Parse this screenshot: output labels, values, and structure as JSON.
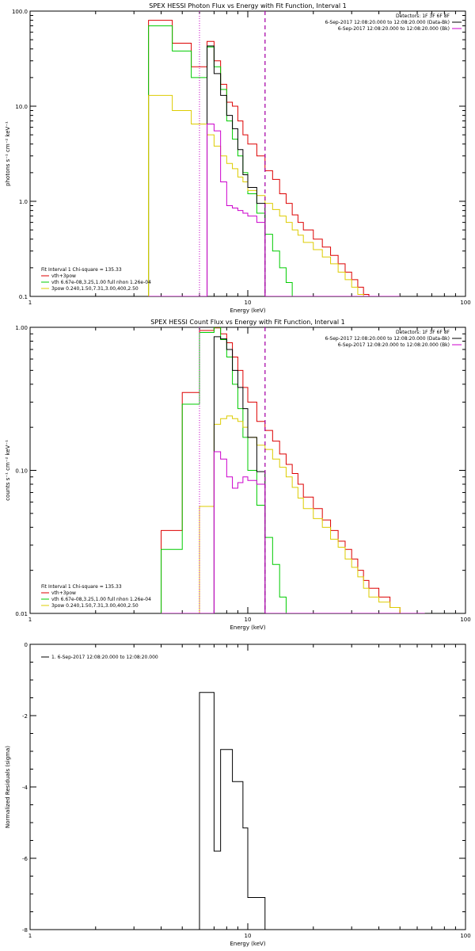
{
  "chart_data": [
    {
      "type": "line",
      "title": "SPEX HESSI Photon Flux vs Energy with Fit Function, Interval 1",
      "xlabel": "Energy (keV)",
      "ylabel": "photons s⁻¹ cm⁻² keV⁻¹",
      "xscale": "log",
      "yscale": "log",
      "xlim": [
        1,
        100
      ],
      "ylim": [
        0.1,
        100
      ],
      "x_ticks": [
        "1",
        "10",
        "100"
      ],
      "y_ticks": [
        "0.1",
        "1.0",
        "10.0",
        "100.0"
      ],
      "vlines": [
        {
          "x": 6.0,
          "style": "dotted",
          "color": "#000000"
        },
        {
          "x": 6.0,
          "style": "dotted",
          "color": "#cc00cc"
        },
        {
          "x": 12.0,
          "style": "dashed",
          "color": "#000000"
        },
        {
          "x": 12.0,
          "style": "dashed",
          "color": "#cc00cc"
        }
      ],
      "edges": [
        3.5,
        4.0,
        4.5,
        5.0,
        5.5,
        6.0,
        6.5,
        7.0,
        7.5,
        8.0,
        8.5,
        9.0,
        9.5,
        10.0,
        11.0,
        12.0,
        13.0,
        14.0,
        15.0,
        16.0,
        17.0,
        18.0,
        20.0,
        22.0,
        24.0,
        26.0,
        28.0,
        30.0,
        32.0,
        34.0,
        36.0,
        40.0,
        45.0,
        50.0
      ],
      "series": [
        {
          "name": "vth+3pow",
          "color": "#dd0000",
          "values": [
            80,
            80,
            46,
            46,
            26,
            26,
            48,
            30,
            17,
            11,
            10,
            7.0,
            5.0,
            4.0,
            3.0,
            2.1,
            1.7,
            1.2,
            0.95,
            0.72,
            0.6,
            0.5,
            0.4,
            0.33,
            0.27,
            0.22,
            0.18,
            0.15,
            0.125,
            0.105,
            0.1,
            0.1,
            0.1
          ]
        },
        {
          "name": "vth 6.67e-08,3.25,1.00 full nhon 1.26e-04",
          "color": "#00cc00",
          "values": [
            70,
            70,
            38,
            38,
            20,
            20,
            42,
            26,
            15,
            7.0,
            4.5,
            3.0,
            2.0,
            1.2,
            0.75,
            0.45,
            0.3,
            0.2,
            0.14,
            0.1,
            0.1,
            0.1,
            0.1,
            0.1,
            0.1,
            0.1,
            0.1,
            0.1,
            0.1,
            0.1,
            0.1,
            0.1,
            0.1
          ]
        },
        {
          "name": "3pow 0.240,1.50,7.31,3.00,400,2.50",
          "color": "#ddcc00",
          "values": [
            13,
            13,
            9.0,
            9.0,
            6.5,
            6.5,
            5.0,
            3.8,
            3.0,
            2.5,
            2.2,
            1.8,
            1.6,
            1.3,
            1.15,
            0.95,
            0.82,
            0.7,
            0.6,
            0.5,
            0.44,
            0.37,
            0.31,
            0.26,
            0.22,
            0.18,
            0.15,
            0.125,
            0.105,
            0.1,
            0.1,
            0.1,
            0.1
          ]
        },
        {
          "name": "",
          "color": "#000000",
          "values": [
            0.1,
            0.1,
            0.1,
            0.1,
            0.1,
            0.1,
            43,
            22,
            13,
            8.0,
            5.8,
            3.5,
            1.9,
            1.4,
            0.95,
            0.1,
            0.1,
            0.1,
            0.1,
            0.1,
            0.1,
            0.1,
            0.1,
            0.1,
            0.1,
            0.1,
            0.1,
            0.1,
            0.1,
            0.1,
            0.1,
            0.1,
            0.1
          ]
        },
        {
          "name": "",
          "color": "#cc00cc",
          "values": [
            0.1,
            0.1,
            0.1,
            0.1,
            0.1,
            0.1,
            6.5,
            5.5,
            1.6,
            0.9,
            0.85,
            0.8,
            0.75,
            0.7,
            0.6,
            0.1,
            0.1,
            0.1,
            0.1,
            0.1,
            0.1,
            0.1,
            0.1,
            0.1,
            0.1,
            0.1,
            0.1,
            0.1,
            0.1,
            0.1,
            0.1,
            0.1,
            0.1
          ]
        }
      ],
      "legend_top_right": {
        "detectors": "Detectors: 1F 3F 6F 8F",
        "entries": [
          {
            "text": "6-Sep-2017 12:08:20.000 to 12:08:20.000 (Data-Bk)",
            "color": "#000000"
          },
          {
            "text": "6-Sep-2017 12:08:20.000 to 12:08:20.000 (Bk)",
            "color": "#cc00cc"
          }
        ]
      },
      "legend_bottom_left": {
        "header": "Fit Interval 1   Chi-square = 135.33",
        "entries": [
          {
            "text": "vth+3pow",
            "color": "#dd0000"
          },
          {
            "text": "vth 6.67e-08,3.25,1.00  full nhon 1.26e-04",
            "color": "#00cc00"
          },
          {
            "text": "3pow 0.240,1.50,7.31,3.00,400,2.50",
            "color": "#ddcc00"
          }
        ]
      }
    },
    {
      "type": "line",
      "title": "SPEX HESSI Count Flux vs Energy with Fit Function, Interval 1",
      "xlabel": "Energy (keV)",
      "ylabel": "counts s⁻¹ cm⁻² keV⁻¹",
      "xscale": "log",
      "yscale": "log",
      "xlim": [
        1,
        100
      ],
      "ylim": [
        0.01,
        1.0
      ],
      "x_ticks": [
        "1",
        "10",
        "100"
      ],
      "y_ticks": [
        "0.01",
        "0.10",
        "1.00"
      ],
      "vlines": [
        {
          "x": 6.0,
          "style": "dotted",
          "color": "#000000"
        },
        {
          "x": 6.0,
          "style": "dotted",
          "color": "#cc00cc"
        },
        {
          "x": 12.0,
          "style": "dashed",
          "color": "#000000"
        },
        {
          "x": 12.0,
          "style": "dashed",
          "color": "#cc00cc"
        }
      ],
      "edges": [
        4.0,
        4.5,
        5.0,
        5.5,
        6.0,
        6.5,
        7.0,
        7.5,
        8.0,
        8.5,
        9.0,
        9.5,
        10.0,
        11.0,
        12.0,
        13.0,
        14.0,
        15.0,
        16.0,
        17.0,
        18.0,
        20.0,
        22.0,
        24.0,
        26.0,
        28.0,
        30.0,
        32.0,
        34.0,
        36.0,
        40.0,
        45.0,
        50.0,
        55.0,
        60.0,
        65.0
      ],
      "series": [
        {
          "name": "vth+3pow",
          "color": "#dd0000",
          "values": [
            0.038,
            0.038,
            0.35,
            0.35,
            0.95,
            0.95,
            0.99,
            0.9,
            0.78,
            0.62,
            0.5,
            0.38,
            0.3,
            0.22,
            0.19,
            0.16,
            0.13,
            0.11,
            0.095,
            0.08,
            0.065,
            0.054,
            0.045,
            0.038,
            0.032,
            0.028,
            0.024,
            0.02,
            0.017,
            0.015,
            0.013,
            0.011,
            0.01,
            0.01,
            0.01
          ]
        },
        {
          "name": "vth 6.67e-08,3.25,1.00 full nhon 1.26e-04",
          "color": "#00cc00",
          "values": [
            0.028,
            0.028,
            0.29,
            0.29,
            0.92,
            0.92,
            1.0,
            0.82,
            0.62,
            0.4,
            0.27,
            0.17,
            0.1,
            0.057,
            0.034,
            0.022,
            0.013,
            0.01,
            0.01,
            0.01,
            0.01,
            0.01,
            0.01,
            0.01,
            0.01,
            0.01,
            0.01,
            0.01,
            0.01,
            0.01,
            0.01,
            0.01,
            0.01,
            0.01,
            0.01
          ]
        },
        {
          "name": "3pow 0.240,1.50,7.31,3.00,400,2.50",
          "color": "#ddcc00",
          "values": [
            0.01,
            0.01,
            0.01,
            0.01,
            0.056,
            0.056,
            0.21,
            0.23,
            0.24,
            0.23,
            0.22,
            0.2,
            0.17,
            0.15,
            0.14,
            0.12,
            0.105,
            0.09,
            0.076,
            0.064,
            0.054,
            0.046,
            0.04,
            0.033,
            0.029,
            0.024,
            0.021,
            0.018,
            0.015,
            0.013,
            0.012,
            0.011,
            0.01,
            0.01,
            0.01
          ]
        },
        {
          "name": "",
          "color": "#000000",
          "values": [
            0.01,
            0.01,
            0.01,
            0.01,
            0.01,
            0.01,
            0.86,
            0.83,
            0.7,
            0.5,
            0.38,
            0.27,
            0.17,
            0.098,
            0.01,
            0.01,
            0.01,
            0.01,
            0.01,
            0.01,
            0.01,
            0.01,
            0.01,
            0.01,
            0.01,
            0.01,
            0.01,
            0.01,
            0.01,
            0.01,
            0.01,
            0.01,
            0.01,
            0.01,
            0.01
          ]
        },
        {
          "name": "",
          "color": "#cc00cc",
          "values": [
            0.01,
            0.01,
            0.01,
            0.01,
            0.01,
            0.01,
            0.135,
            0.12,
            0.09,
            0.075,
            0.082,
            0.09,
            0.085,
            0.08,
            0.01,
            0.01,
            0.01,
            0.01,
            0.01,
            0.01,
            0.01,
            0.01,
            0.01,
            0.01,
            0.01,
            0.01,
            0.01,
            0.01,
            0.01,
            0.01,
            0.01,
            0.01,
            0.01,
            0.01,
            0.01
          ]
        }
      ],
      "legend_top_right": {
        "detectors": "Detectors: 1F 3F 6F 8F",
        "entries": [
          {
            "text": "6-Sep-2017 12:08:20.000 to 12:08:20.000 (Data-Bk)",
            "color": "#000000"
          },
          {
            "text": "6-Sep-2017 12:08:20.000 to 12:08:20.000 (Bk)",
            "color": "#cc00cc"
          }
        ]
      },
      "legend_bottom_left": {
        "header": "Fit Interval 1   Chi-square = 135.33",
        "entries": [
          {
            "text": "vth+3pow",
            "color": "#dd0000"
          },
          {
            "text": "vth 6.67e-08,3.25,1.00  full nhon 1.26e-04",
            "color": "#00cc00"
          },
          {
            "text": "3pow 0.240,1.50,7.31,3.00,400,2.50",
            "color": "#ddcc00"
          }
        ]
      }
    },
    {
      "type": "line",
      "title": "",
      "xlabel": "Energy (keV)",
      "ylabel": "Normalized Residuals (sigma)",
      "xscale": "log",
      "yscale": "linear",
      "xlim": [
        1,
        100
      ],
      "ylim": [
        -8,
        0
      ],
      "x_ticks": [
        "1",
        "10",
        "100"
      ],
      "y_ticks": [
        "-8",
        "-6",
        "-4",
        "-2",
        "0"
      ],
      "edges": [
        6.0,
        6.5,
        7.0,
        7.5,
        8.0,
        8.5,
        9.0,
        9.5,
        10.0,
        11.0,
        12.0
      ],
      "series": [
        {
          "name": "1.  6-Sep-2017 12:08:20.000 to 12:08:20.000",
          "color": "#000000",
          "values": [
            -1.35,
            -1.35,
            -5.8,
            -2.95,
            -2.95,
            -3.85,
            -3.85,
            -5.15,
            -7.1,
            -7.1
          ]
        }
      ],
      "legend_top_left": {
        "entries": [
          {
            "text": "1.  6-Sep-2017 12:08:20.000 to 12:08:20.000",
            "color": "#000000"
          }
        ]
      }
    }
  ]
}
